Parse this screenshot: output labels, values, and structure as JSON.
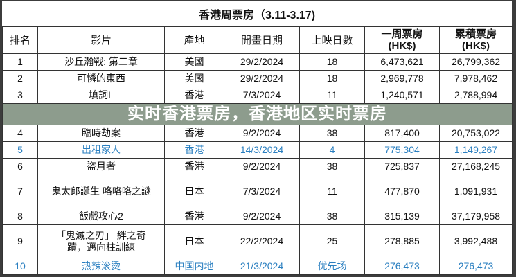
{
  "title": "香港周票房（3.11-3.17)",
  "headers": [
    "排名",
    "影片",
    "產地",
    "開畫日期",
    "上映日數",
    "一周票房\n(HK$)",
    "累積票房\n(HK$)"
  ],
  "rows": [
    {
      "rank": "1",
      "film": "沙丘瀚戰: 第二章",
      "origin": "美國",
      "date": "29/2/2024",
      "days": "18",
      "week": "6,473,621",
      "total": "26,799,362"
    },
    {
      "rank": "2",
      "film": "可憐的東西",
      "origin": "美國",
      "date": "29/2/2024",
      "days": "18",
      "week": "2,969,778",
      "total": "7,978,462"
    },
    {
      "rank": "3",
      "film": "填詞L",
      "origin": "香港",
      "date": "7/3/2024",
      "days": "11",
      "week": "1,240,571",
      "total": "2,788,994"
    },
    {
      "rank": "4",
      "film": "臨時劫案",
      "origin": "香港",
      "date": "9/2/2024",
      "days": "38",
      "week": "817,400",
      "total": "20,753,022"
    },
    {
      "rank": "5",
      "film": "出租家人",
      "origin": "香港",
      "date": "14/3/2024",
      "days": "4",
      "week": "775,304",
      "total": "1,149,267"
    },
    {
      "rank": "6",
      "film": "盜月者",
      "origin": "香港",
      "date": "9/2/2024",
      "days": "38",
      "week": "725,837",
      "total": "27,168,245"
    },
    {
      "rank": "7",
      "film": "鬼太郎誕生 咯咯咯之謎",
      "origin": "日本",
      "date": "7/3/2024",
      "days": "11",
      "week": "477,870",
      "total": "1,091,931"
    },
    {
      "rank": "8",
      "film": "飯戲攻心2",
      "origin": "香港",
      "date": "9/2/2024",
      "days": "38",
      "week": "315,139",
      "total": "37,179,958"
    },
    {
      "rank": "9",
      "film": "「鬼滅之刃」 絆之奇蹟，邁向柱訓練",
      "origin": "日本",
      "date": "22/2/2024",
      "days": "25",
      "week": "278,885",
      "total": "3,992,488"
    },
    {
      "rank": "10",
      "film": "热辣滚烫",
      "origin": "中国内地",
      "date": "21/3/2024",
      "days": "优先场",
      "week": "276,473",
      "total": "276,473"
    }
  ],
  "overlay_caption": "实时香港票房，香港地区实时票房",
  "colors": {
    "highlight_text": "#2a7fc0",
    "band": "#788a78"
  }
}
